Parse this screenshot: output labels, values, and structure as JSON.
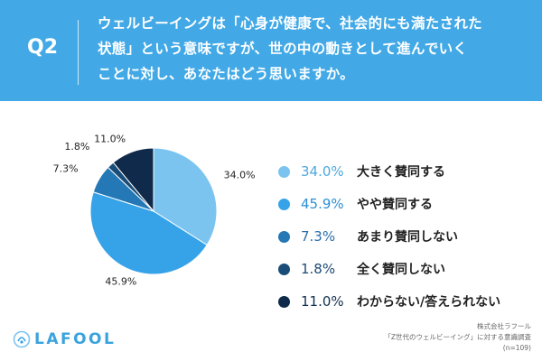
{
  "header": {
    "question_number": "Q2",
    "question_lines": [
      "ウェルビーイングは「心身が健康で、社会的にも満たされた",
      "状態」という意味ですが、世の中の動きとして進んでいく",
      "ことに対し、あなたはどう思いますか。"
    ]
  },
  "chart_data": {
    "type": "pie",
    "categories": [
      "大きく賛同する",
      "やや賛同する",
      "あまり賛同しない",
      "全く賛同しない",
      "わからない/答えられない"
    ],
    "values": [
      34.0,
      45.9,
      7.3,
      1.8,
      11.0
    ],
    "value_labels": [
      "34.0%",
      "45.9%",
      "7.3%",
      "1.8%",
      "11.0%"
    ],
    "colors": [
      "#7cc4f0",
      "#36a3e8",
      "#2378b5",
      "#1a4e78",
      "#0f2a4a"
    ],
    "start_angle_deg": 0,
    "direction": "clockwise"
  },
  "legend_text_colors": [
    "#4ea8e0",
    "#2b8fd6",
    "#2b6ea8",
    "#1d4a73",
    "#12304f"
  ],
  "branding": {
    "logo": "LAFOOL",
    "logo_icon": "lafool-logo-icon"
  },
  "source": {
    "lines": [
      "株式会社ラフール",
      "「Z世代のウェルビーイング」に対する意識調査",
      "(n=109)"
    ]
  }
}
